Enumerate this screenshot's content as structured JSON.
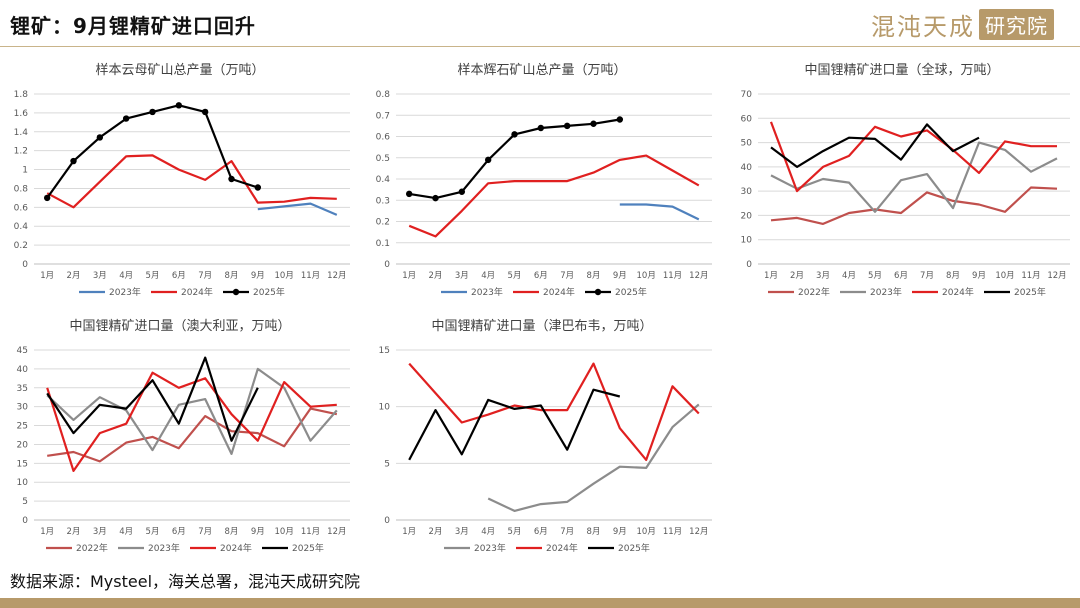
{
  "header": {
    "title": "锂矿：9月锂精矿进口回升",
    "logo_text": "混沌天成",
    "logo_box": "研究院"
  },
  "footer": {
    "source": "数据来源：Mysteel，海关总署，混沌天成研究院"
  },
  "colors": {
    "2022年": "#c0504d",
    "2023年_a": "#4f81bd",
    "2023年_b": "#8c8c8c",
    "2024年": "#e02020",
    "2025年": "#000000"
  },
  "chart_data": [
    {
      "type": "line",
      "title": "样本云母矿山总产量（万吨）",
      "categories": [
        "1月",
        "2月",
        "3月",
        "4月",
        "5月",
        "6月",
        "7月",
        "8月",
        "9月",
        "10月",
        "11月",
        "12月"
      ],
      "ylim": [
        0,
        1.8
      ],
      "yticks": [
        "0",
        "0.2",
        "0.4",
        "0.6",
        "0.8",
        "1",
        "1.2",
        "1.4",
        "1.6",
        "1.8"
      ],
      "grid": true,
      "legend": "bottom",
      "series": [
        {
          "name": "2023年",
          "color": "#4f81bd",
          "markers": false,
          "values": [
            null,
            null,
            null,
            null,
            null,
            null,
            null,
            null,
            0.58,
            0.61,
            0.64,
            0.52
          ]
        },
        {
          "name": "2024年",
          "color": "#e02020",
          "markers": false,
          "values": [
            0.75,
            0.6,
            0.87,
            1.14,
            1.15,
            1.0,
            0.89,
            1.09,
            0.65,
            0.66,
            0.7,
            0.69
          ]
        },
        {
          "name": "2025年",
          "color": "#000000",
          "markers": true,
          "values": [
            0.7,
            1.09,
            1.34,
            1.54,
            1.61,
            1.68,
            1.61,
            0.9,
            0.81,
            null,
            null,
            null
          ]
        }
      ]
    },
    {
      "type": "line",
      "title": "样本辉石矿山总产量（万吨）",
      "categories": [
        "1月",
        "2月",
        "3月",
        "4月",
        "5月",
        "6月",
        "7月",
        "8月",
        "9月",
        "10月",
        "11月",
        "12月"
      ],
      "ylim": [
        0,
        0.8
      ],
      "yticks": [
        "0",
        "0.1",
        "0.2",
        "0.3",
        "0.4",
        "0.5",
        "0.6",
        "0.7",
        "0.8"
      ],
      "grid": true,
      "legend": "bottom",
      "series": [
        {
          "name": "2023年",
          "color": "#4f81bd",
          "markers": false,
          "values": [
            null,
            null,
            null,
            null,
            null,
            null,
            null,
            null,
            0.28,
            0.28,
            0.27,
            0.21
          ]
        },
        {
          "name": "2024年",
          "color": "#e02020",
          "markers": false,
          "values": [
            0.18,
            0.13,
            0.25,
            0.38,
            0.39,
            0.39,
            0.39,
            0.43,
            0.49,
            0.51,
            0.44,
            0.37
          ]
        },
        {
          "name": "2025年",
          "color": "#000000",
          "markers": true,
          "values": [
            0.33,
            0.31,
            0.34,
            0.49,
            0.61,
            0.64,
            0.65,
            0.66,
            0.68,
            null,
            null,
            null
          ]
        }
      ]
    },
    {
      "type": "line",
      "title": "中国锂精矿进口量（全球，万吨）",
      "categories": [
        "1月",
        "2月",
        "3月",
        "4月",
        "5月",
        "6月",
        "7月",
        "8月",
        "9月",
        "10月",
        "11月",
        "12月"
      ],
      "ylim": [
        0,
        70
      ],
      "yticks": [
        "0",
        "10",
        "20",
        "30",
        "40",
        "50",
        "60",
        "70"
      ],
      "grid": true,
      "legend": "bottom",
      "series": [
        {
          "name": "2022年",
          "color": "#c0504d",
          "markers": false,
          "values": [
            18,
            19,
            16.5,
            21,
            22.5,
            21,
            29.5,
            26,
            24.5,
            21.5,
            31.5,
            31
          ]
        },
        {
          "name": "2023年",
          "color": "#8c8c8c",
          "markers": false,
          "values": [
            36.5,
            31,
            35,
            33.5,
            21.5,
            34.5,
            37,
            23,
            50,
            47,
            38,
            43.5
          ]
        },
        {
          "name": "2024年",
          "color": "#e02020",
          "markers": false,
          "values": [
            58.5,
            30,
            40,
            44.5,
            56.5,
            52.5,
            55,
            47,
            37.5,
            50.5,
            48.5,
            48.5
          ]
        },
        {
          "name": "2025年",
          "color": "#000000",
          "markers": false,
          "values": [
            48,
            40,
            46.5,
            52,
            51.5,
            43,
            57.5,
            46.5,
            52,
            null,
            null,
            null
          ]
        }
      ]
    },
    {
      "type": "line",
      "title": "中国锂精矿进口量（澳大利亚，万吨）",
      "categories": [
        "1月",
        "2月",
        "3月",
        "4月",
        "5月",
        "6月",
        "7月",
        "8月",
        "9月",
        "10月",
        "11月",
        "12月"
      ],
      "ylim": [
        0,
        45
      ],
      "yticks": [
        "0",
        "5",
        "10",
        "15",
        "20",
        "25",
        "30",
        "35",
        "40",
        "45"
      ],
      "grid": true,
      "legend": "bottom",
      "series": [
        {
          "name": "2022年",
          "color": "#c0504d",
          "markers": false,
          "values": [
            17,
            18,
            15.5,
            20.5,
            22,
            19,
            27.5,
            23.5,
            23,
            19.5,
            29.5,
            28
          ]
        },
        {
          "name": "2023年",
          "color": "#8c8c8c",
          "markers": false,
          "values": [
            33,
            26.5,
            32.5,
            29,
            18.5,
            30.5,
            32,
            17.5,
            40,
            35,
            21,
            29
          ]
        },
        {
          "name": "2024年",
          "color": "#e02020",
          "markers": false,
          "values": [
            35,
            13,
            23,
            25.5,
            39,
            35,
            37.5,
            28,
            21,
            36.5,
            30,
            30.5
          ]
        },
        {
          "name": "2025年",
          "color": "#000000",
          "markers": false,
          "values": [
            33.5,
            23,
            30.5,
            29.5,
            37,
            25.5,
            43,
            21,
            35,
            null,
            null,
            null
          ]
        }
      ]
    },
    {
      "type": "line",
      "title": "中国锂精矿进口量（津巴布韦，万吨）",
      "categories": [
        "1月",
        "2月",
        "3月",
        "4月",
        "5月",
        "6月",
        "7月",
        "8月",
        "9月",
        "10月",
        "11月",
        "12月"
      ],
      "ylim": [
        0,
        15
      ],
      "yticks": [
        "0",
        "5",
        "10",
        "15"
      ],
      "grid": true,
      "legend": "bottom",
      "series": [
        {
          "name": "2023年",
          "color": "#8c8c8c",
          "markers": false,
          "values": [
            null,
            null,
            null,
            1.9,
            0.8,
            1.4,
            1.6,
            3.2,
            4.7,
            4.6,
            8.2,
            10.2
          ]
        },
        {
          "name": "2024年",
          "color": "#e02020",
          "markers": false,
          "values": [
            13.8,
            11.2,
            8.6,
            9.3,
            10.1,
            9.7,
            9.7,
            13.8,
            8.1,
            5.3,
            11.8,
            9.4
          ]
        },
        {
          "name": "2025年",
          "color": "#000000",
          "markers": false,
          "values": [
            5.3,
            9.7,
            5.8,
            10.6,
            9.8,
            10.1,
            6.2,
            11.5,
            10.9,
            null,
            null,
            null
          ]
        }
      ]
    }
  ]
}
